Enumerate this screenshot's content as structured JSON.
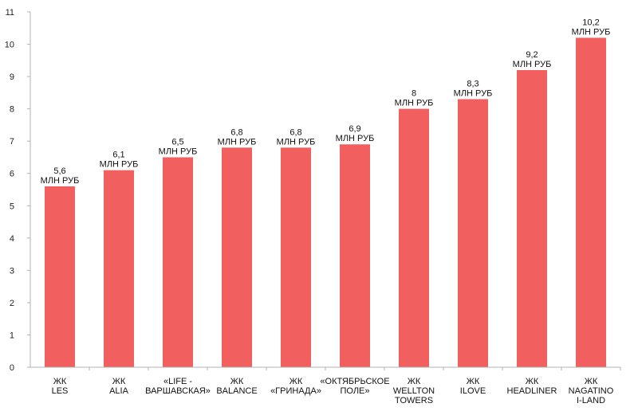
{
  "chart_data": {
    "type": "bar",
    "title": "",
    "xlabel": "",
    "ylabel": "",
    "ylim": [
      0,
      11
    ],
    "yticks": [
      0,
      1,
      2,
      3,
      4,
      5,
      6,
      7,
      8,
      9,
      10,
      11
    ],
    "grid": false,
    "colors": {
      "bar": "#f25f5f",
      "axis": "#b3b3b3"
    },
    "categories": [
      [
        "ЖК",
        "LES"
      ],
      [
        "ЖК",
        "ALIA"
      ],
      [
        "«LIFE -",
        "ВАРШАВСКАЯ»"
      ],
      [
        "ЖК",
        "BALANCE"
      ],
      [
        "ЖК",
        "«ГРИНАДА»"
      ],
      [
        "«ОКТЯБРЬСКОЕ",
        "ПОЛЕ»"
      ],
      [
        "ЖК",
        "WELLTON",
        "TOWERS"
      ],
      [
        "ЖК",
        "ILOVE"
      ],
      [
        "ЖК",
        "HEADLINER"
      ],
      [
        "ЖК",
        "NAGATINO",
        "I-LAND"
      ]
    ],
    "values": [
      5.6,
      6.1,
      6.5,
      6.8,
      6.8,
      6.9,
      8,
      8.3,
      9.2,
      10.2
    ],
    "value_labels": [
      "5,6",
      "6,1",
      "6,5",
      "6,8",
      "6,8",
      "6,9",
      "8",
      "8,3",
      "9,2",
      "10,2"
    ],
    "unit_label": "МЛН РУБ"
  }
}
